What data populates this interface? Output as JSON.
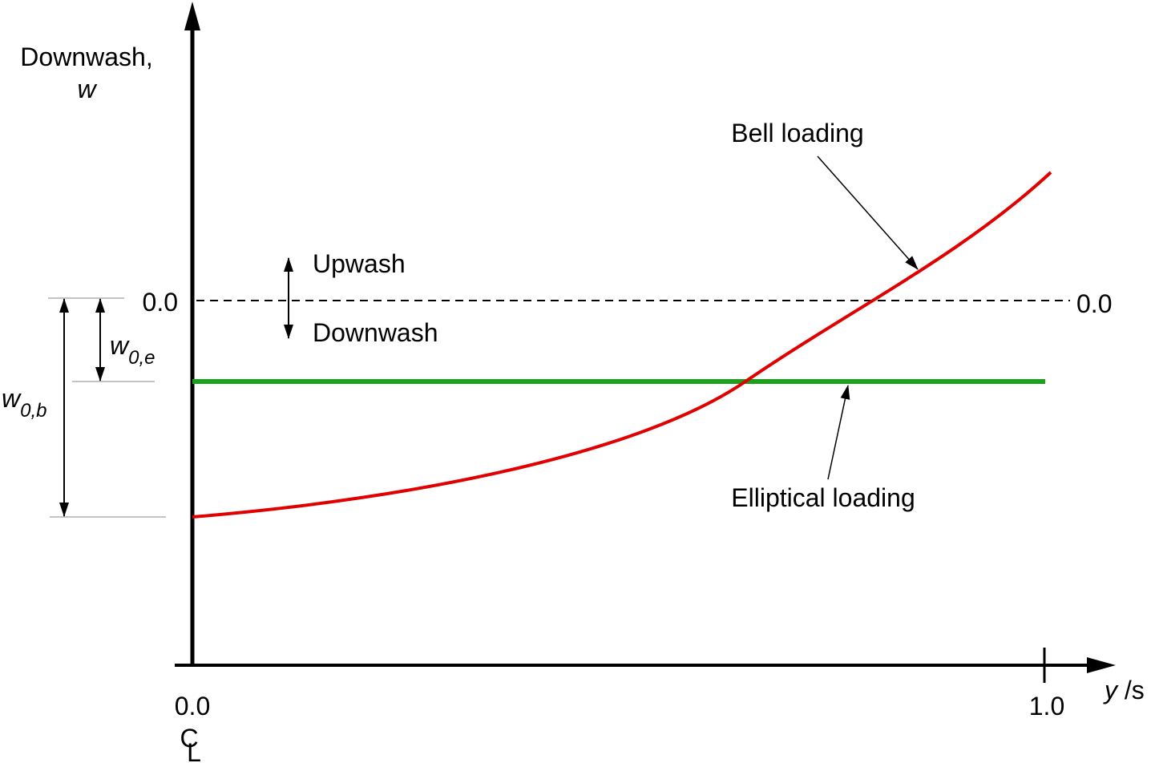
{
  "y_axis": {
    "label": "Downwash,",
    "symbol": "w",
    "zero_left": "0.0",
    "zero_right": "0.0"
  },
  "x_axis": {
    "start": "0.0",
    "end": "1.0",
    "label_italic": "y",
    "label_rest": " /s",
    "centerline_c": "C",
    "centerline_l": "L"
  },
  "direction": {
    "up": "Upwash",
    "down": "Downwash"
  },
  "dimensions": {
    "elliptical": {
      "symbol": "w",
      "subscript": "0,e"
    },
    "bell": {
      "symbol": "w",
      "subscript": "0,b"
    }
  },
  "curves": {
    "bell": "Bell loading",
    "elliptical": "Elliptical loading"
  }
}
